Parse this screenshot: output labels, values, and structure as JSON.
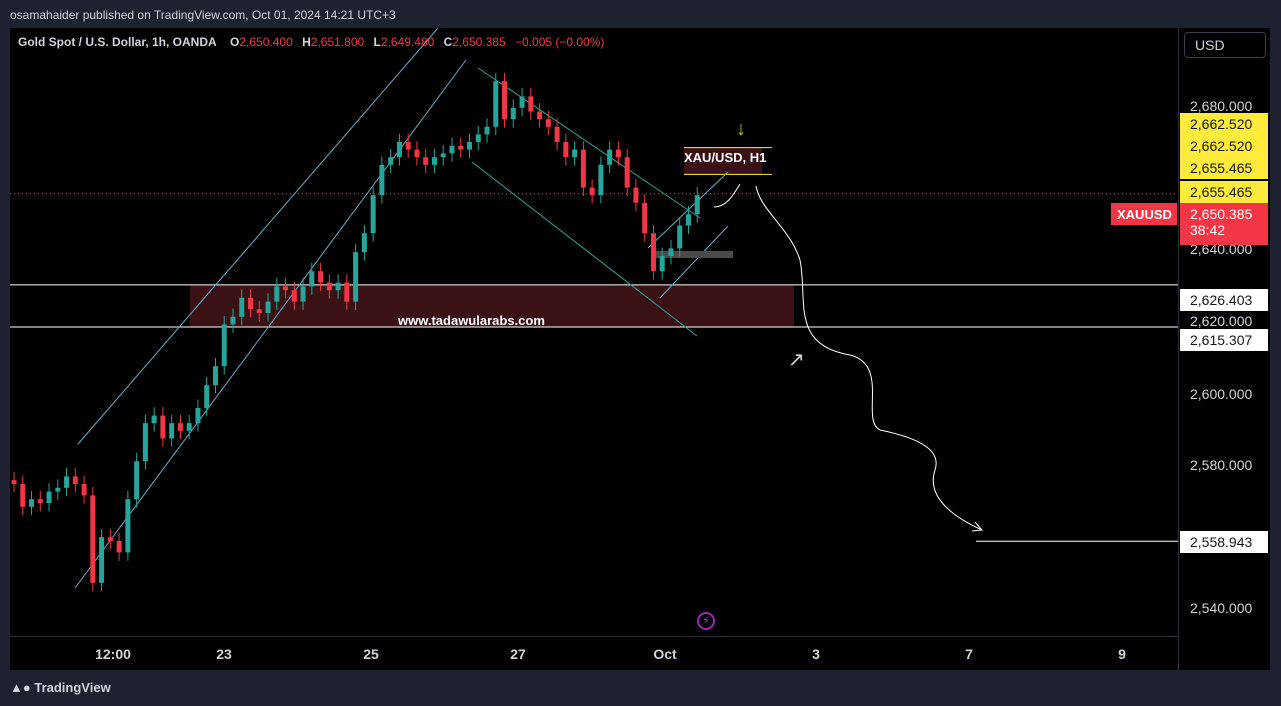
{
  "header": {
    "publisher_line": "osamahaider published on TradingView.com, Oct 01, 2024 14:21 UTC+3"
  },
  "legend": {
    "symbol": "Gold Spot / U.S. Dollar, 1h, OANDA",
    "o_label": "O",
    "o_value": "2,650.400",
    "h_label": "H",
    "h_value": "2,651.800",
    "l_label": "L",
    "l_value": "2,649.480",
    "c_label": "C",
    "c_value": "2,650.385",
    "change": "−0.005 (−0.00%)"
  },
  "currency_button": "USD",
  "symbol_tag": "XAUUSD",
  "current_price": {
    "price": "2,650.385",
    "countdown": "38:42"
  },
  "price_labels": [
    {
      "text": "2,662.520",
      "style": "yellow"
    },
    {
      "text": "2,662.520",
      "style": "yellow"
    },
    {
      "text": "2,655.465",
      "style": "yellow"
    },
    {
      "text": "2,655.465",
      "style": "yellow"
    },
    {
      "text": "2,626.403",
      "style": "white"
    },
    {
      "text": "2,615.307",
      "style": "white"
    },
    {
      "text": "2,558.943",
      "style": "white"
    }
  ],
  "annotations": {
    "chart_title": "XAU/USD, H1",
    "watermark": "www.tadawularabs.com"
  },
  "footer": {
    "brand": "TradingView"
  },
  "colors": {
    "bull": "#26a69a",
    "bear": "#f23645",
    "background": "#000000",
    "channel": "#5fb0d0",
    "zone": "#3a1216",
    "accent_yellow": "#ffeb3b"
  },
  "chart_data": {
    "type": "candlestick",
    "title": "Gold Spot / U.S. Dollar, 1h, OANDA",
    "x_ticks": [
      "12:00",
      "23",
      "25",
      "27",
      "Oct",
      "3",
      "7",
      "9"
    ],
    "y_ticks": [
      "2,540.000",
      "2,580.000",
      "2,600.000",
      "2,620.000",
      "2,640.000",
      "2,680.000"
    ],
    "ylim": [
      2534,
      2694
    ],
    "grid": false,
    "current_price": 2650.385,
    "horizontal_levels": [
      2626.403,
      2615.307,
      2558.943
    ],
    "zones": [
      {
        "top": 2626.403,
        "bottom": 2615.307,
        "label": "www.tadawularabs.com"
      },
      {
        "top": 2662.52,
        "bottom": 2655.465,
        "label": ""
      }
    ],
    "series": [
      {
        "path": [
          2575,
          2574,
          2568,
          2570,
          2569,
          2572,
          2573,
          2576,
          2574,
          2571,
          2548,
          2560,
          2559,
          2556,
          2570,
          2580,
          2590,
          2592,
          2586,
          2590,
          2588,
          2590,
          2594,
          2600,
          2605,
          2616,
          2618,
          2623,
          2620,
          2619,
          2622,
          2626,
          2625,
          2622,
          2626,
          2630,
          2627,
          2625,
          2627,
          2622,
          2635,
          2640,
          2650,
          2658,
          2660,
          2664,
          2662,
          2660,
          2658,
          2660,
          2661,
          2663,
          2662,
          2664,
          2666,
          2668,
          2680,
          2670,
          2673,
          2676,
          2672,
          2670,
          2668,
          2664,
          2660,
          2662,
          2652,
          2650,
          2658,
          2662,
          2660,
          2652,
          2648,
          2640,
          2630,
          2634,
          2636,
          2642,
          2645,
          2650
        ]
      }
    ]
  }
}
